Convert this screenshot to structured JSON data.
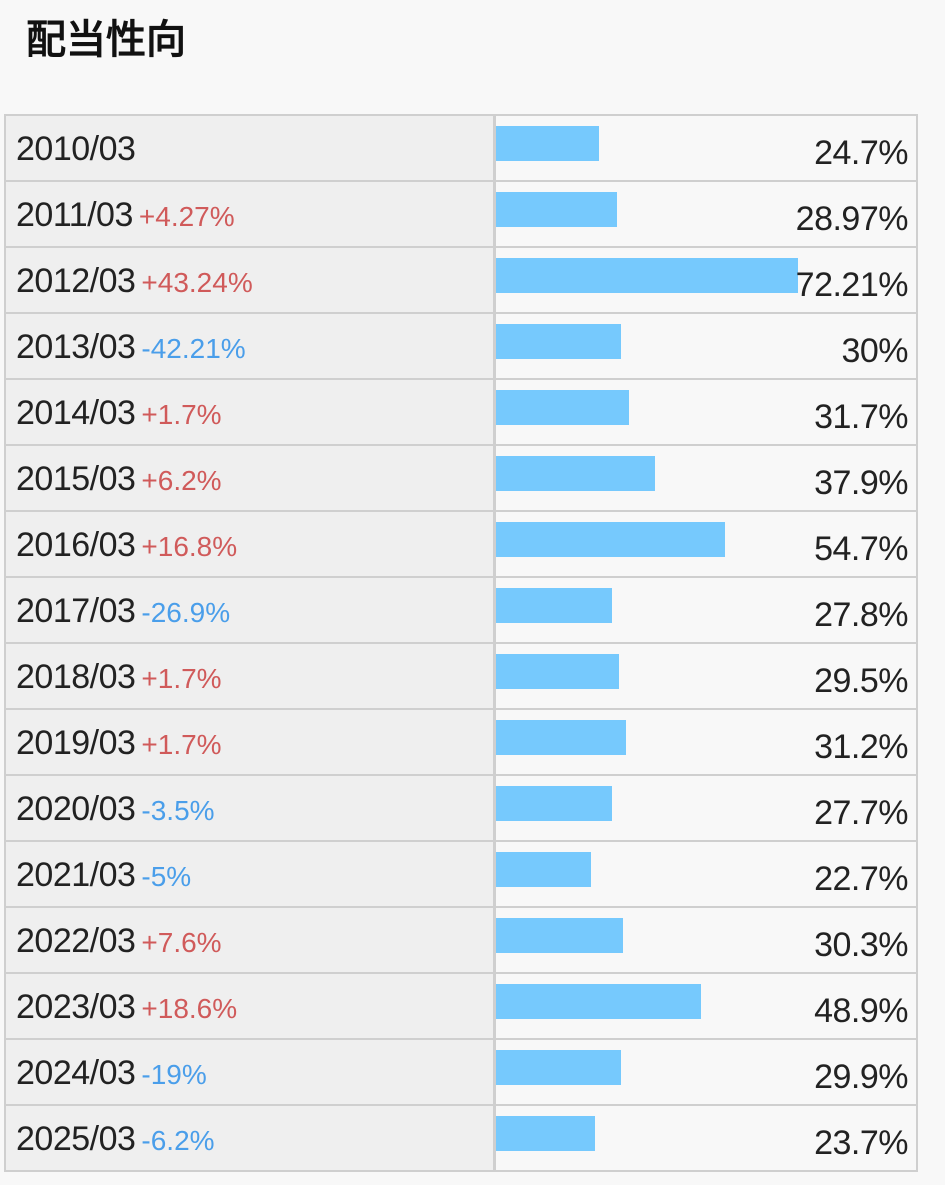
{
  "title": "配当性向",
  "colors": {
    "bar": "#76c9fd",
    "positive": "#d05a5a",
    "negative": "#4a9eea"
  },
  "chart_data": {
    "type": "bar",
    "categories": [
      "2010/03",
      "2011/03",
      "2012/03",
      "2013/03",
      "2014/03",
      "2015/03",
      "2016/03",
      "2017/03",
      "2018/03",
      "2019/03",
      "2020/03",
      "2021/03",
      "2022/03",
      "2023/03",
      "2024/03",
      "2025/03"
    ],
    "values": [
      24.7,
      28.97,
      72.21,
      30,
      31.7,
      37.9,
      54.7,
      27.8,
      29.5,
      31.2,
      27.7,
      22.7,
      30.3,
      48.9,
      29.9,
      23.7
    ],
    "value_labels": [
      "24.7%",
      "28.97%",
      "72.21%",
      "30%",
      "31.7%",
      "37.9%",
      "54.7%",
      "27.8%",
      "29.5%",
      "31.2%",
      "27.7%",
      "22.7%",
      "30.3%",
      "48.9%",
      "29.9%",
      "23.7%"
    ],
    "changes": [
      "",
      "+4.27%",
      "+43.24%",
      "-42.21%",
      "+1.7%",
      "+6.2%",
      "+16.8%",
      "-26.9%",
      "+1.7%",
      "+1.7%",
      "-3.5%",
      "-5%",
      "+7.6%",
      "+18.6%",
      "-19%",
      "-6.2%"
    ],
    "title": "配当性向",
    "xlabel": "",
    "ylabel": "",
    "orientation": "horizontal",
    "xlim": [
      0,
      72.21
    ]
  }
}
